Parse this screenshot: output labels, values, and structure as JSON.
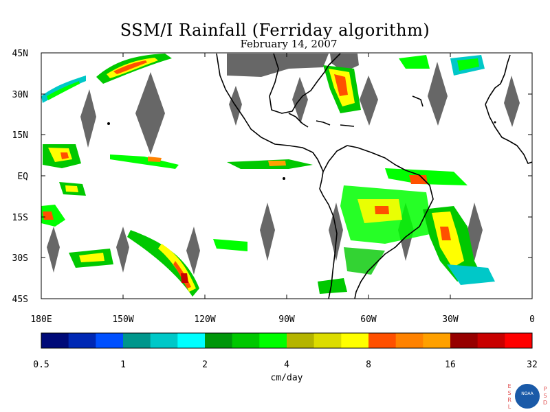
{
  "title": "SSM/I Rainfall (Ferriday algorithm)",
  "subtitle": "February 14, 2007",
  "map": {
    "lat_labels": [
      "45N",
      "30N",
      "15N",
      "EQ",
      "15S",
      "30S",
      "45S"
    ],
    "lon_labels": [
      "180E",
      "150W",
      "120W",
      "90W",
      "60W",
      "30W",
      "0"
    ]
  },
  "colorbar": {
    "colors": [
      "#000a78",
      "#0028b4",
      "#0050ff",
      "#00968c",
      "#00c8c8",
      "#00ffff",
      "#00960a",
      "#00c800",
      "#00ff00",
      "#b4b400",
      "#dcdc00",
      "#ffff00",
      "#ff5000",
      "#ff8200",
      "#ffa000",
      "#960000",
      "#c80000",
      "#ff0000"
    ],
    "tick_labels": [
      "0.5",
      "1",
      "2",
      "4",
      "8",
      "16",
      "32"
    ],
    "unit": "cm/day"
  },
  "logo": {
    "left_letters": [
      "E",
      "S",
      "R",
      "L"
    ],
    "right_letters": [
      "P",
      "S",
      "D"
    ],
    "center": "NOAA",
    "colors": {
      "letters": "#e05050",
      "disc": "#1a5aa8",
      "ring": "#ffffff"
    }
  }
}
